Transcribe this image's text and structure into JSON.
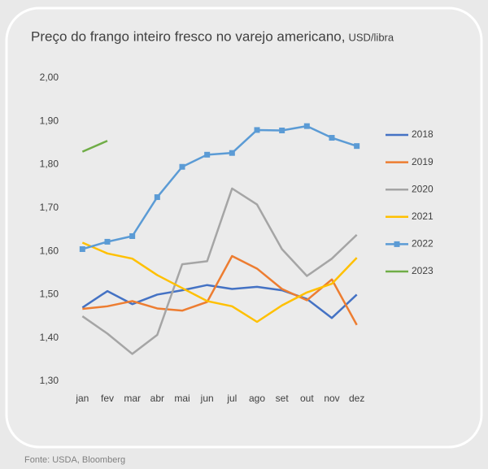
{
  "chart_data": {
    "type": "line",
    "title": "Preço do frango inteiro fresco no varejo americano,",
    "unit": "USD/libra",
    "source": "Fonte: USDA, Bloomberg",
    "categories": [
      "jan",
      "fev",
      "mar",
      "abr",
      "mai",
      "jun",
      "jul",
      "ago",
      "set",
      "out",
      "nov",
      "dez"
    ],
    "series": [
      {
        "name": "2018",
        "color": "#4472c4",
        "values": [
          1.47,
          1.508,
          1.478,
          1.5,
          1.51,
          1.522,
          1.513,
          1.518,
          1.51,
          1.49,
          1.446,
          1.5
        ]
      },
      {
        "name": "2019",
        "color": "#ed7d31",
        "values": [
          1.467,
          1.473,
          1.485,
          1.468,
          1.463,
          1.483,
          1.589,
          1.56,
          1.513,
          1.487,
          1.535,
          1.43
        ]
      },
      {
        "name": "2020",
        "color": "#a5a5a5",
        "values": [
          1.45,
          1.41,
          1.363,
          1.407,
          1.57,
          1.577,
          1.745,
          1.708,
          1.605,
          1.543,
          1.583,
          1.638
        ]
      },
      {
        "name": "2021",
        "color": "#ffc000",
        "values": [
          1.62,
          1.595,
          1.583,
          1.545,
          1.515,
          1.485,
          1.473,
          1.437,
          1.475,
          1.505,
          1.525,
          1.585
        ]
      },
      {
        "name": "2022",
        "color": "#5b9bd5",
        "marker": "square",
        "values": [
          1.605,
          1.622,
          1.635,
          1.725,
          1.795,
          1.823,
          1.827,
          1.88,
          1.879,
          1.889,
          1.862,
          1.843
        ]
      },
      {
        "name": "2023",
        "color": "#70ad47",
        "values": [
          1.83,
          1.855,
          null,
          null,
          null,
          null,
          null,
          null,
          null,
          null,
          null,
          null
        ]
      }
    ],
    "ylim": [
      1.3,
      2.0
    ],
    "yticks": [
      {
        "value": 1.3,
        "label": "1,30"
      },
      {
        "value": 1.4,
        "label": "1,40"
      },
      {
        "value": 1.5,
        "label": "1,50"
      },
      {
        "value": 1.6,
        "label": "1,60"
      },
      {
        "value": 1.7,
        "label": "1,70"
      },
      {
        "value": 1.8,
        "label": "1,80"
      },
      {
        "value": 1.9,
        "label": "1,90"
      },
      {
        "value": 2.0,
        "label": "2,00"
      }
    ],
    "grid": false,
    "legend": "right"
  }
}
